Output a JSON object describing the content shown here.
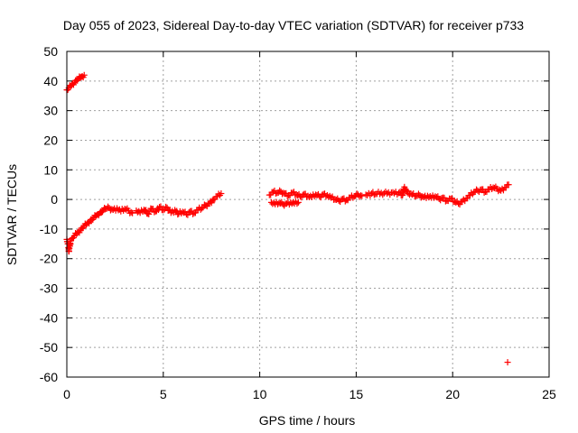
{
  "chart_data": {
    "type": "scatter",
    "title": "Day 055 of 2023, Sidereal Day-to-day VTEC variation (SDTVAR) for receiver p733",
    "xlabel": "GPS time / hours",
    "ylabel": "SDTVAR / TECUs",
    "xlim": [
      0,
      25
    ],
    "ylim": [
      -60,
      50
    ],
    "xticks": [
      0,
      5,
      10,
      15,
      20,
      25
    ],
    "yticks": [
      -60,
      -50,
      -40,
      -30,
      -20,
      -10,
      0,
      10,
      20,
      30,
      40,
      50
    ],
    "grid": true,
    "marker": "plus",
    "color": "#ff0000",
    "series": [
      {
        "segments": [
          [
            [
              0.0,
              37.0
            ],
            [
              0.1,
              37.6
            ],
            [
              0.2,
              38.3
            ],
            [
              0.3,
              39.0
            ],
            [
              0.4,
              39.6
            ],
            [
              0.5,
              40.2
            ],
            [
              0.6,
              40.7
            ],
            [
              0.7,
              41.2
            ],
            [
              0.8,
              41.6
            ],
            [
              0.9,
              42.0
            ]
          ],
          [
            [
              0.0,
              -13.5
            ],
            [
              0.05,
              -15.0
            ],
            [
              0.1,
              -16.5
            ],
            [
              0.1,
              -17.5
            ],
            [
              0.2,
              -14.0
            ],
            [
              0.3,
              -13.0
            ],
            [
              0.4,
              -12.3
            ],
            [
              0.5,
              -11.6
            ],
            [
              0.6,
              -11.0
            ],
            [
              0.7,
              -10.3
            ],
            [
              0.8,
              -9.7
            ],
            [
              0.9,
              -9.0
            ],
            [
              1.0,
              -8.5
            ],
            [
              1.1,
              -7.8
            ],
            [
              1.2,
              -7.3
            ],
            [
              1.3,
              -6.8
            ],
            [
              1.4,
              -6.2
            ],
            [
              1.5,
              -5.6
            ],
            [
              1.6,
              -5.0
            ],
            [
              1.7,
              -4.6
            ],
            [
              1.8,
              -4.2
            ],
            [
              1.9,
              -3.6
            ],
            [
              2.0,
              -3.2
            ],
            [
              2.2,
              -2.9
            ],
            [
              2.4,
              -3.5
            ],
            [
              2.6,
              -3.0
            ],
            [
              2.8,
              -4.0
            ],
            [
              3.0,
              -3.2
            ],
            [
              3.2,
              -3.8
            ],
            [
              3.4,
              -4.6
            ]
          ],
          [
            [
              3.6,
              -3.8
            ],
            [
              3.8,
              -4.5
            ],
            [
              4.0,
              -3.5
            ],
            [
              4.2,
              -4.8
            ],
            [
              4.4,
              -3.2
            ],
            [
              4.6,
              -4.0
            ],
            [
              4.8,
              -2.6
            ],
            [
              5.0,
              -3.6
            ],
            [
              5.2,
              -2.8
            ],
            [
              5.4,
              -4.5
            ],
            [
              5.6,
              -3.6
            ],
            [
              5.8,
              -4.8
            ],
            [
              6.0,
              -4.2
            ],
            [
              6.2,
              -5.0
            ],
            [
              6.4,
              -4.0
            ],
            [
              6.6,
              -4.6
            ],
            [
              6.8,
              -3.5
            ],
            [
              7.0,
              -3.0
            ],
            [
              7.2,
              -2.0
            ],
            [
              7.4,
              -1.2
            ],
            [
              7.6,
              0.0
            ],
            [
              7.8,
              1.0
            ],
            [
              8.0,
              2.0
            ]
          ],
          [
            [
              10.5,
              1.5
            ],
            [
              10.7,
              2.5
            ],
            [
              10.9,
              2.2
            ],
            [
              11.1,
              2.6
            ],
            [
              11.3,
              2.0
            ],
            [
              11.5,
              1.4
            ],
            [
              11.7,
              2.2
            ],
            [
              11.9,
              1.6
            ],
            [
              12.1,
              1.0
            ],
            [
              12.3,
              1.8
            ],
            [
              12.5,
              1.2
            ],
            [
              12.7,
              0.8
            ],
            [
              12.9,
              1.6
            ],
            [
              13.1,
              1.0
            ],
            [
              13.3,
              1.8
            ],
            [
              13.5,
              1.4
            ],
            [
              13.7,
              0.6
            ],
            [
              13.9,
              0.0
            ],
            [
              14.1,
              -0.4
            ],
            [
              14.3,
              0.2
            ],
            [
              14.5,
              -0.2
            ],
            [
              14.7,
              0.6
            ],
            [
              14.9,
              1.0
            ],
            [
              15.1,
              1.6
            ],
            [
              15.3,
              1.2
            ]
          ],
          [
            [
              10.6,
              -1.0
            ],
            [
              10.8,
              -1.6
            ],
            [
              11.0,
              -1.2
            ],
            [
              11.2,
              -1.6
            ],
            [
              11.4,
              -1.4
            ],
            [
              11.6,
              -1.0
            ],
            [
              11.8,
              -1.4
            ],
            [
              12.0,
              -1.0
            ]
          ],
          [
            [
              15.5,
              1.6
            ],
            [
              15.8,
              2.0
            ],
            [
              16.0,
              1.8
            ],
            [
              16.3,
              2.2
            ],
            [
              16.6,
              2.0
            ],
            [
              16.9,
              2.4
            ],
            [
              17.2,
              2.2
            ],
            [
              17.4,
              1.4
            ],
            [
              17.5,
              4.2
            ],
            [
              17.6,
              3.0
            ],
            [
              17.7,
              2.0
            ],
            [
              17.9,
              1.6
            ],
            [
              18.1,
              1.2
            ],
            [
              18.3,
              1.4
            ],
            [
              18.5,
              0.8
            ],
            [
              18.7,
              1.2
            ],
            [
              18.9,
              0.6
            ],
            [
              19.1,
              1.0
            ],
            [
              19.3,
              0.2
            ],
            [
              19.5,
              0.6
            ],
            [
              19.7,
              -0.4
            ],
            [
              19.9,
              0.2
            ],
            [
              20.1,
              -0.8
            ],
            [
              20.3,
              -1.4
            ],
            [
              20.5,
              -0.6
            ],
            [
              20.7,
              0.4
            ],
            [
              20.9,
              1.4
            ],
            [
              21.1,
              2.4
            ],
            [
              21.3,
              3.0
            ],
            [
              21.5,
              3.4
            ],
            [
              21.7,
              2.6
            ],
            [
              21.9,
              3.4
            ],
            [
              22.1,
              4.0
            ],
            [
              22.3,
              3.6
            ],
            [
              22.5,
              3.0
            ],
            [
              22.7,
              4.0
            ],
            [
              22.9,
              5.0
            ]
          ]
        ],
        "outliers": [
          [
            22.85,
            -55.0
          ]
        ]
      }
    ]
  }
}
